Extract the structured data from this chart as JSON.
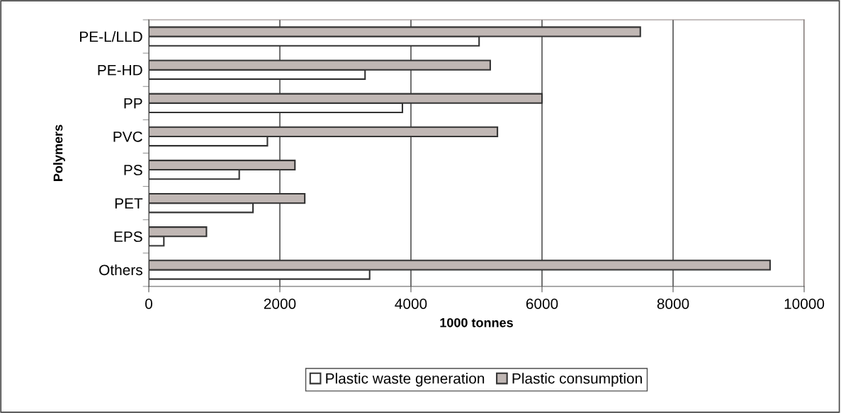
{
  "chart_data": {
    "type": "bar",
    "orientation": "horizontal",
    "xlabel": "1000 tonnes",
    "ylabel": "Polymers",
    "categories": [
      "PE-L/LLD",
      "PE-HD",
      "PP",
      "PVC",
      "PS",
      "PET",
      "EPS",
      "Others"
    ],
    "series": [
      {
        "name": "Plastic waste generation",
        "color": "#ffffff",
        "values": [
          5040,
          3300,
          3870,
          1810,
          1380,
          1590,
          230,
          3370
        ]
      },
      {
        "name": "Plastic consumption",
        "color": "#c0b7b4",
        "values": [
          7500,
          5210,
          6000,
          5320,
          2230,
          2380,
          880,
          9480
        ]
      }
    ],
    "xlim": [
      0,
      10000
    ],
    "xticks": [
      0,
      2000,
      4000,
      6000,
      8000,
      10000
    ],
    "grid": "x",
    "legend": "bottom"
  }
}
